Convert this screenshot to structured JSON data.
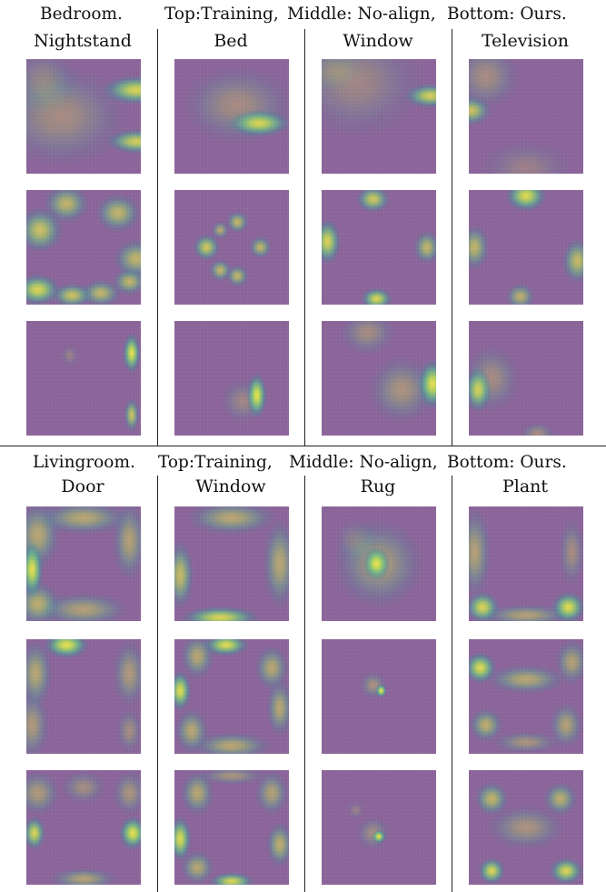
{
  "sections": [
    {
      "title": {
        "scene": "Bedroom.",
        "top": "Top:Training,",
        "middle": "Middle: No-align,",
        "bottom": "Bottom: Ours."
      },
      "columns": [
        "Nightstand",
        "Bed",
        "Window",
        "Television"
      ],
      "rows": [
        "Training",
        "No-align",
        "Ours"
      ],
      "heatmaps": [
        [
          [
            [
              0.96,
              0.27,
              0.3,
              0.13,
              0.85
            ],
            [
              0.96,
              0.72,
              0.26,
              0.11,
              0.8
            ],
            [
              0.3,
              0.5,
              0.6,
              0.45,
              0.3
            ],
            [
              0.15,
              0.2,
              0.3,
              0.3,
              0.25
            ]
          ],
          [
            [
              0.74,
              0.56,
              0.28,
              0.12,
              0.85
            ],
            [
              0.55,
              0.4,
              0.5,
              0.35,
              0.3
            ]
          ],
          [
            [
              0.95,
              0.32,
              0.23,
              0.11,
              0.8
            ],
            [
              0.3,
              0.2,
              0.6,
              0.5,
              0.25
            ],
            [
              0.1,
              0.1,
              0.3,
              0.2,
              0.2
            ]
          ],
          [
            [
              0.02,
              0.45,
              0.18,
              0.13,
              0.7
            ],
            [
              0.15,
              0.15,
              0.3,
              0.3,
              0.3
            ],
            [
              0.5,
              0.95,
              0.4,
              0.25,
              0.2
            ]
          ]
        ],
        [
          [
            [
              0.12,
              0.35,
              0.2,
              0.2,
              0.7
            ],
            [
              0.35,
              0.12,
              0.2,
              0.17,
              0.6
            ],
            [
              0.8,
              0.2,
              0.2,
              0.17,
              0.6
            ],
            [
              0.96,
              0.6,
              0.2,
              0.17,
              0.6
            ],
            [
              0.1,
              0.87,
              0.2,
              0.14,
              0.85
            ],
            [
              0.4,
              0.92,
              0.18,
              0.11,
              0.7
            ],
            [
              0.65,
              0.9,
              0.18,
              0.12,
              0.6
            ],
            [
              0.9,
              0.8,
              0.15,
              0.12,
              0.6
            ]
          ],
          [
            [
              0.28,
              0.5,
              0.12,
              0.12,
              0.75
            ],
            [
              0.4,
              0.7,
              0.1,
              0.1,
              0.6
            ],
            [
              0.55,
              0.75,
              0.1,
              0.1,
              0.6
            ],
            [
              0.75,
              0.5,
              0.1,
              0.1,
              0.6
            ],
            [
              0.55,
              0.28,
              0.1,
              0.1,
              0.6
            ],
            [
              0.4,
              0.35,
              0.08,
              0.08,
              0.5
            ]
          ],
          [
            [
              0.45,
              0.08,
              0.15,
              0.12,
              0.75
            ],
            [
              0.05,
              0.45,
              0.12,
              0.2,
              0.85
            ],
            [
              0.48,
              0.95,
              0.14,
              0.1,
              0.85
            ],
            [
              0.92,
              0.5,
              0.12,
              0.15,
              0.6
            ]
          ],
          [
            [
              0.5,
              0.05,
              0.18,
              0.14,
              0.9
            ],
            [
              0.05,
              0.5,
              0.13,
              0.2,
              0.6
            ],
            [
              0.95,
              0.62,
              0.14,
              0.2,
              0.65
            ],
            [
              0.45,
              0.93,
              0.13,
              0.12,
              0.55
            ]
          ]
        ],
        [
          [
            [
              0.92,
              0.28,
              0.08,
              0.18,
              0.95
            ],
            [
              0.92,
              0.82,
              0.07,
              0.15,
              0.7
            ],
            [
              0.38,
              0.3,
              0.08,
              0.1,
              0.2
            ]
          ],
          [
            [
              0.72,
              0.65,
              0.09,
              0.2,
              0.95
            ],
            [
              0.6,
              0.7,
              0.2,
              0.2,
              0.25
            ]
          ],
          [
            [
              0.97,
              0.55,
              0.13,
              0.22,
              0.95
            ],
            [
              0.7,
              0.6,
              0.3,
              0.3,
              0.35
            ],
            [
              0.4,
              0.1,
              0.25,
              0.2,
              0.3
            ]
          ],
          [
            [
              0.08,
              0.6,
              0.12,
              0.2,
              0.8
            ],
            [
              0.2,
              0.5,
              0.25,
              0.3,
              0.3
            ],
            [
              0.6,
              0.98,
              0.15,
              0.1,
              0.3
            ]
          ]
        ]
      ]
    },
    {
      "title": {
        "scene": "Livingroom.",
        "top": "Top:Training,",
        "middle": "Middle: No-align,",
        "bottom": "Bottom: Ours."
      },
      "columns": [
        "Door",
        "Window",
        "Rug",
        "Plant"
      ],
      "rows": [
        "Training",
        "No-align",
        "Ours"
      ],
      "heatmaps": [
        [
          [
            [
              0.05,
              0.55,
              0.1,
              0.25,
              0.95
            ],
            [
              0.1,
              0.25,
              0.2,
              0.3,
              0.5
            ],
            [
              0.5,
              0.1,
              0.4,
              0.15,
              0.5
            ],
            [
              0.9,
              0.3,
              0.15,
              0.35,
              0.45
            ],
            [
              0.5,
              0.9,
              0.4,
              0.15,
              0.45
            ],
            [
              0.1,
              0.85,
              0.2,
              0.2,
              0.55
            ]
          ],
          [
            [
              0.4,
              0.97,
              0.35,
              0.1,
              0.85
            ],
            [
              0.05,
              0.6,
              0.12,
              0.3,
              0.65
            ],
            [
              0.5,
              0.1,
              0.4,
              0.15,
              0.5
            ],
            [
              0.92,
              0.5,
              0.15,
              0.4,
              0.5
            ]
          ],
          [
            [
              0.48,
              0.5,
              0.12,
              0.15,
              0.95
            ],
            [
              0.5,
              0.5,
              0.4,
              0.4,
              0.4
            ],
            [
              0.3,
              0.3,
              0.2,
              0.2,
              0.2
            ]
          ],
          [
            [
              0.12,
              0.88,
              0.15,
              0.14,
              0.85
            ],
            [
              0.87,
              0.88,
              0.15,
              0.14,
              0.9
            ],
            [
              0.05,
              0.4,
              0.15,
              0.4,
              0.45
            ],
            [
              0.5,
              0.95,
              0.4,
              0.1,
              0.45
            ],
            [
              0.9,
              0.4,
              0.12,
              0.3,
              0.3
            ]
          ]
        ],
        [
          [
            [
              0.35,
              0.05,
              0.2,
              0.12,
              0.95
            ],
            [
              0.08,
              0.3,
              0.15,
              0.3,
              0.5
            ],
            [
              0.9,
              0.3,
              0.15,
              0.3,
              0.4
            ],
            [
              0.05,
              0.75,
              0.15,
              0.3,
              0.4
            ],
            [
              0.9,
              0.8,
              0.12,
              0.2,
              0.3
            ]
          ],
          [
            [
              0.05,
              0.45,
              0.1,
              0.18,
              0.9
            ],
            [
              0.45,
              0.05,
              0.2,
              0.1,
              0.9
            ],
            [
              0.2,
              0.15,
              0.15,
              0.2,
              0.5
            ],
            [
              0.85,
              0.25,
              0.15,
              0.2,
              0.5
            ],
            [
              0.92,
              0.6,
              0.12,
              0.25,
              0.5
            ],
            [
              0.5,
              0.93,
              0.35,
              0.12,
              0.5
            ],
            [
              0.15,
              0.8,
              0.15,
              0.2,
              0.5
            ]
          ],
          [
            [
              0.52,
              0.45,
              0.05,
              0.06,
              0.95
            ],
            [
              0.45,
              0.4,
              0.12,
              0.12,
              0.35
            ]
          ],
          [
            [
              0.1,
              0.25,
              0.14,
              0.14,
              0.9
            ],
            [
              0.5,
              0.35,
              0.35,
              0.13,
              0.5
            ],
            [
              0.9,
              0.2,
              0.15,
              0.2,
              0.45
            ],
            [
              0.15,
              0.75,
              0.15,
              0.15,
              0.55
            ],
            [
              0.85,
              0.75,
              0.15,
              0.2,
              0.45
            ],
            [
              0.5,
              0.9,
              0.3,
              0.1,
              0.35
            ]
          ]
        ],
        [
          [
            [
              0.07,
              0.55,
              0.1,
              0.15,
              0.85
            ],
            [
              0.93,
              0.55,
              0.12,
              0.15,
              0.95
            ],
            [
              0.1,
              0.2,
              0.2,
              0.2,
              0.4
            ],
            [
              0.9,
              0.2,
              0.15,
              0.2,
              0.35
            ],
            [
              0.5,
              0.95,
              0.3,
              0.1,
              0.45
            ],
            [
              0.5,
              0.15,
              0.2,
              0.15,
              0.3
            ]
          ],
          [
            [
              0.05,
              0.6,
              0.1,
              0.2,
              0.9
            ],
            [
              0.5,
              0.97,
              0.2,
              0.08,
              0.85
            ],
            [
              0.2,
              0.2,
              0.15,
              0.2,
              0.5
            ],
            [
              0.85,
              0.2,
              0.15,
              0.2,
              0.45
            ],
            [
              0.92,
              0.65,
              0.12,
              0.2,
              0.55
            ],
            [
              0.2,
              0.85,
              0.15,
              0.15,
              0.5
            ],
            [
              0.5,
              0.05,
              0.3,
              0.08,
              0.35
            ]
          ],
          [
            [
              0.5,
              0.58,
              0.06,
              0.06,
              0.95
            ],
            [
              0.45,
              0.55,
              0.15,
              0.15,
              0.3
            ],
            [
              0.3,
              0.35,
              0.08,
              0.08,
              0.2
            ]
          ],
          [
            [
              0.2,
              0.88,
              0.12,
              0.12,
              0.85
            ],
            [
              0.85,
              0.88,
              0.15,
              0.12,
              0.85
            ],
            [
              0.2,
              0.25,
              0.15,
              0.15,
              0.6
            ],
            [
              0.8,
              0.25,
              0.15,
              0.15,
              0.55
            ],
            [
              0.5,
              0.5,
              0.35,
              0.2,
              0.35
            ]
          ]
        ]
      ]
    }
  ]
}
